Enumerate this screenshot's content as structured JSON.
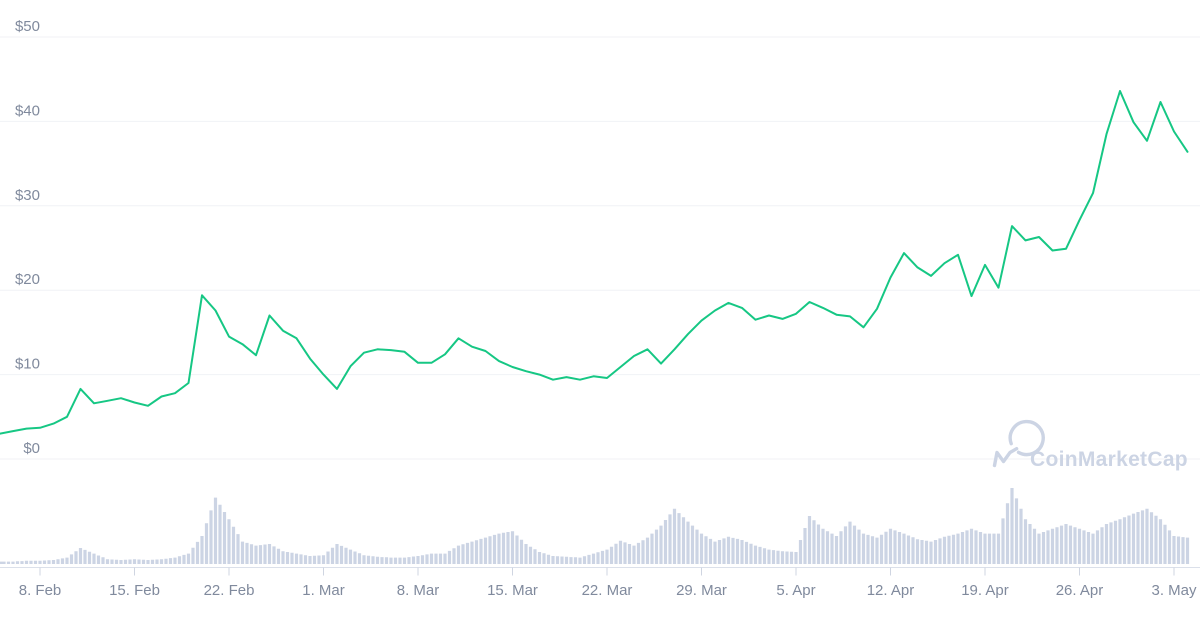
{
  "watermark": {
    "brand": "CoinMarketCap"
  },
  "colors": {
    "price_line": "#16c784",
    "volume_fill": "#ccd4e4",
    "grid_line": "#f0f2f6",
    "axis_line": "#dbe0ea",
    "tick_mark": "#cfd5e1",
    "axis_label": "#808a9d",
    "watermark": "#ccd4e4",
    "background": "#ffffff"
  },
  "chart_data": {
    "type": "line",
    "title": "",
    "legend": {
      "visible": false
    },
    "y_axis": {
      "unit": "$",
      "min": 0,
      "max": 50,
      "tick_labels": [
        "$50",
        "$40",
        "$30",
        "$20",
        "$10",
        "$0"
      ],
      "grid": true
    },
    "x_axis": {
      "tick_labels": [
        "8. Feb",
        "15. Feb",
        "22. Feb",
        "1. Mar",
        "8. Mar",
        "15. Mar",
        "22. Mar",
        "29. Mar",
        "5. Apr",
        "12. Apr",
        "19. Apr",
        "26. Apr",
        "3. May"
      ],
      "interval_between_ticks": "7 days"
    },
    "series": [
      {
        "name": "price",
        "type": "line",
        "unit": "USD",
        "sampling": "daily",
        "start_offset_days_before_first_tick": 3,
        "values": [
          3.0,
          3.3,
          3.6,
          3.7,
          4.2,
          5.0,
          8.3,
          6.6,
          6.9,
          7.2,
          6.7,
          6.3,
          7.4,
          7.8,
          9.0,
          19.4,
          17.6,
          14.5,
          13.6,
          12.3,
          17.0,
          15.2,
          14.3,
          11.9,
          10.0,
          8.3,
          11.0,
          12.6,
          13.0,
          12.9,
          12.7,
          11.4,
          11.4,
          12.4,
          14.3,
          13.3,
          12.8,
          11.6,
          10.9,
          10.4,
          10.0,
          9.4,
          9.7,
          9.4,
          9.8,
          9.6,
          10.9,
          12.2,
          13.0,
          11.3,
          13.0,
          14.8,
          16.4,
          17.6,
          18.5,
          17.9,
          16.5,
          17.0,
          16.6,
          17.2,
          18.6,
          17.9,
          17.1,
          16.9,
          15.6,
          17.8,
          21.5,
          24.4,
          22.7,
          21.7,
          23.2,
          24.2,
          19.3,
          23.0,
          20.3,
          27.6,
          25.9,
          26.3,
          24.7,
          24.9,
          28.3,
          31.5,
          38.5,
          43.6,
          39.9,
          37.7,
          42.3,
          38.8,
          36.4
        ]
      },
      {
        "name": "volume",
        "type": "bar-area",
        "unit": "relative-0-100",
        "sampling": "daily",
        "start_offset_days_before_first_tick": 3,
        "values": [
          3,
          3,
          4,
          4,
          5,
          8,
          20,
          13,
          6,
          5,
          6,
          5,
          6,
          8,
          13,
          35,
          83,
          56,
          28,
          23,
          25,
          16,
          13,
          10,
          11,
          25,
          18,
          11,
          9,
          8,
          8,
          10,
          13,
          13,
          23,
          28,
          33,
          38,
          41,
          25,
          15,
          10,
          9,
          8,
          13,
          18,
          29,
          23,
          33,
          48,
          69,
          53,
          38,
          28,
          34,
          30,
          23,
          18,
          16,
          15,
          60,
          44,
          35,
          53,
          38,
          33,
          44,
          38,
          31,
          28,
          34,
          38,
          44,
          38,
          38,
          95,
          56,
          38,
          44,
          50,
          44,
          38,
          50,
          56,
          63,
          69,
          56,
          35,
          33
        ]
      }
    ]
  }
}
